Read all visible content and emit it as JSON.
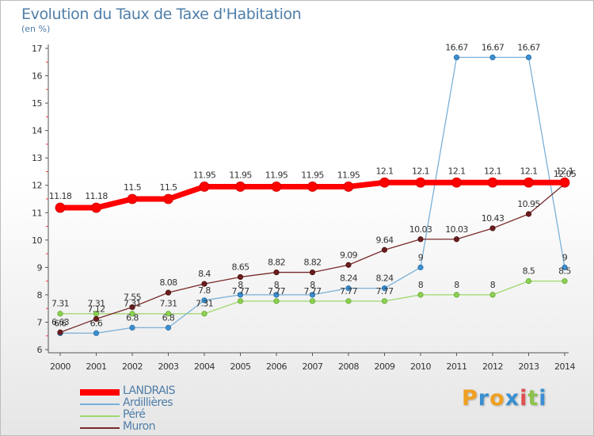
{
  "header": {
    "title": "Evolution du Taux de Taxe d'Habitation",
    "subtitle": "(en %)"
  },
  "brand": {
    "letters": [
      "P",
      "r",
      "o",
      "x",
      "i",
      "t",
      "i"
    ],
    "colors": [
      "#f0a020",
      "#3a8fd0",
      "#f0a020",
      "#3a8fd0",
      "#e05050",
      "#8bc34a",
      "#3a8fd0"
    ]
  },
  "chart_data": {
    "type": "line",
    "title": "Evolution du Taux de Taxe d'Habitation",
    "subtitle": "(en %)",
    "xlabel": "",
    "ylabel": "",
    "x": [
      "2000",
      "2001",
      "2002",
      "2003",
      "2004",
      "2005",
      "2006",
      "2007",
      "2008",
      "2009",
      "2010",
      "2011",
      "2012",
      "2013",
      "2014"
    ],
    "ylim": [
      6,
      17
    ],
    "yticks": [
      "6",
      "7",
      "8",
      "9",
      "10",
      "11",
      "12",
      "13",
      "14",
      "15",
      "16",
      "17"
    ],
    "grid": false,
    "legend_position": "bottom-left",
    "series": [
      {
        "name": "LANDRAIS",
        "color": "#ff0000",
        "values": [
          11.18,
          11.18,
          11.5,
          11.5,
          11.95,
          11.95,
          11.95,
          11.95,
          11.95,
          12.1,
          12.1,
          12.1,
          12.1,
          12.1,
          12.1
        ],
        "labels": [
          "11.18",
          "11.18",
          "11.5",
          "11.5",
          "11.95",
          "11.95",
          "11.95",
          "11.95",
          "11.95",
          "12.1",
          "12.1",
          "12.1",
          "12.1",
          "12.1",
          "12.1"
        ]
      },
      {
        "name": "Ardillières",
        "color": "#7ab0d8",
        "values": [
          6.6,
          6.6,
          6.8,
          6.8,
          7.8,
          8,
          8,
          8,
          8.24,
          8.24,
          9,
          16.67,
          16.67,
          16.67,
          9
        ],
        "labels": [
          "6.6",
          "6.6",
          "6.8",
          "6.8",
          "7.8",
          "8",
          "8",
          "8",
          "8.24",
          "8.24",
          "9",
          "16.67",
          "16.67",
          "16.67",
          "9"
        ]
      },
      {
        "name": "Péré",
        "color": "#9cd86c",
        "values": [
          7.31,
          7.31,
          7.31,
          7.31,
          7.31,
          7.77,
          7.77,
          7.77,
          7.77,
          7.77,
          8,
          8,
          8,
          8.5,
          8.5
        ],
        "labels": [
          "7.31",
          "7.31",
          "7.31",
          "7.31",
          "7.31",
          "7.77",
          "7.77",
          "7.77",
          "7.77",
          "7.77",
          "8",
          "8",
          "8",
          "8.5",
          "8.5"
        ]
      },
      {
        "name": "Muron",
        "color": "#7a2a2a",
        "values": [
          6.63,
          7.12,
          7.55,
          8.08,
          8.4,
          8.65,
          8.82,
          8.82,
          9.09,
          9.64,
          10.03,
          10.03,
          10.43,
          10.95,
          12.05
        ],
        "labels": [
          "6.63",
          "7.12",
          "7.55",
          "8.08",
          "8.4",
          "8.65",
          "8.82",
          "8.82",
          "9.09",
          "9.64",
          "10.03",
          "10.03",
          "10.43",
          "10.95",
          "12.05"
        ]
      }
    ]
  }
}
